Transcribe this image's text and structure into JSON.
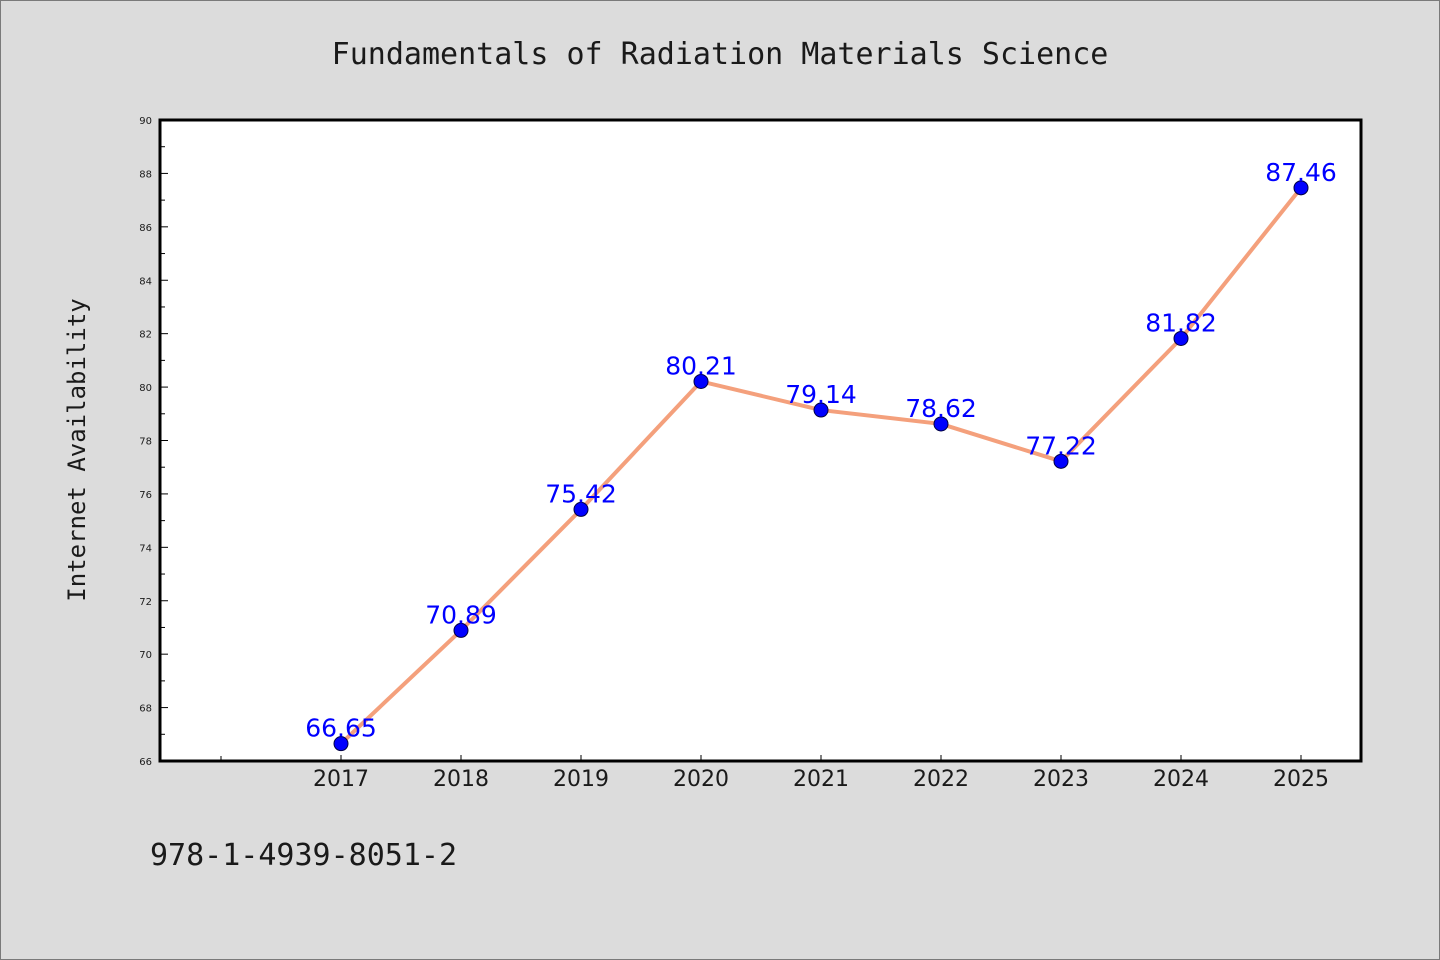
{
  "chart_data": {
    "type": "line",
    "title": "Fundamentals of Radiation Materials Science",
    "ylabel": "Internet Availability",
    "xlabel": "",
    "categories": [
      "2017",
      "2018",
      "2019",
      "2020",
      "2021",
      "2022",
      "2023",
      "2024",
      "2025"
    ],
    "series": [
      {
        "values": [
          66.65,
          70.89,
          75.42,
          80.21,
          79.14,
          78.62,
          77.22,
          81.82,
          87.46
        ],
        "data_labels": [
          "66.65",
          "70.89",
          "75.42",
          "80.21",
          "79.14",
          "78.62",
          "77.22",
          "81.82",
          "87.46"
        ]
      }
    ],
    "ylim": [
      66,
      90
    ],
    "yticks": [
      66,
      68,
      70,
      72,
      74,
      76,
      78,
      80,
      82,
      84,
      86,
      88,
      90
    ],
    "grid": false,
    "colors": {
      "line": "#f4a07c",
      "marker": "#0000ff",
      "data_label": "#0000ff",
      "background": "#dcdcdc",
      "plot_area": "#ffffff"
    }
  },
  "footer": {
    "isbn": "978-1-4939-8051-2"
  }
}
